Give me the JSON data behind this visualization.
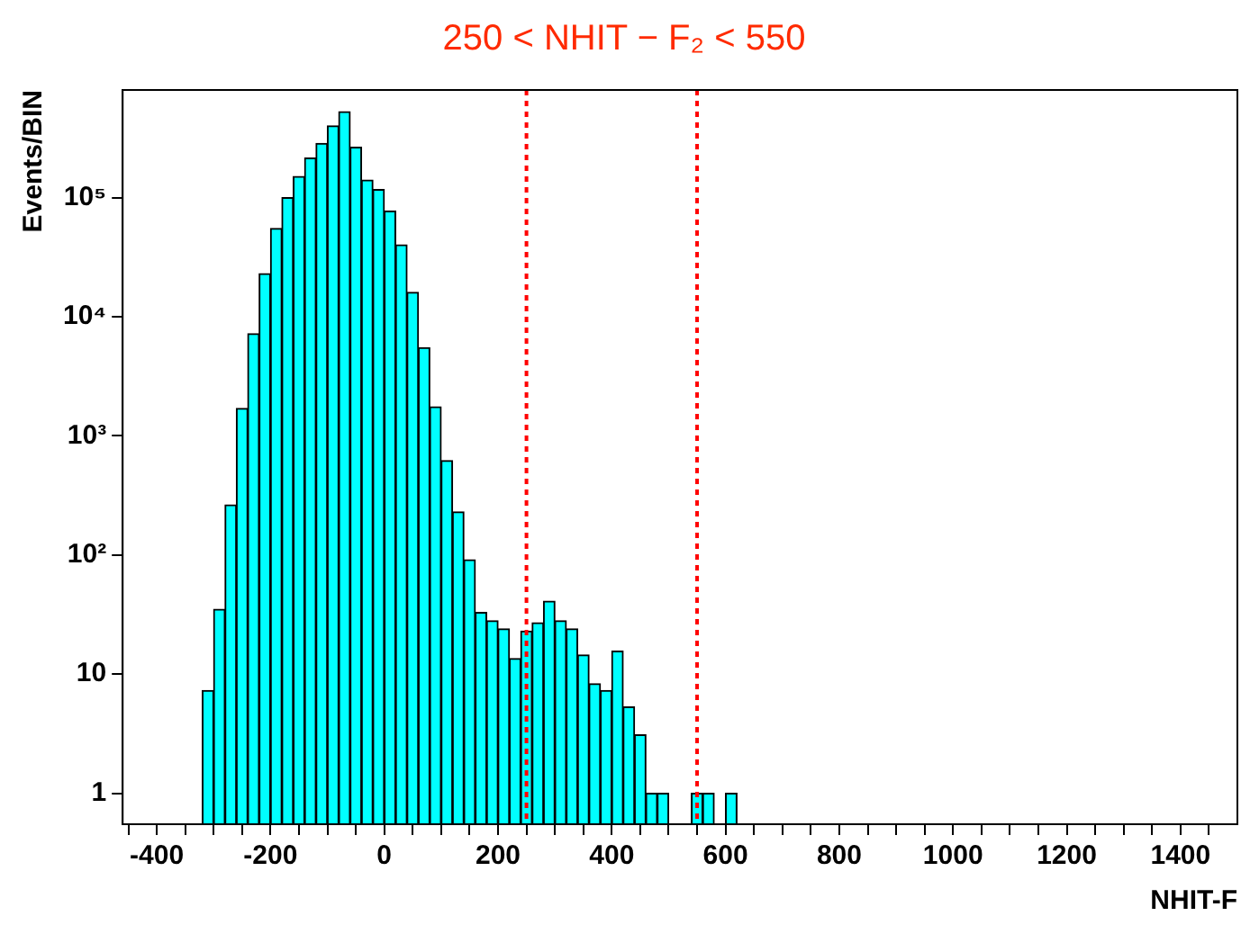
{
  "chart_data": {
    "type": "histogram",
    "title": "250 < NHIT − F₂ < 550",
    "xlabel": "NHIT-F",
    "ylabel": "Events/BIN",
    "color": "#00ffff",
    "log": "y",
    "bins": [
      -320,
      -300,
      -280,
      -260,
      -240,
      -220,
      -200,
      -180,
      -160,
      -140,
      -120,
      -100,
      -80,
      -60,
      -40,
      -20,
      0,
      20,
      40,
      60,
      80,
      100,
      120,
      140,
      160,
      180,
      200,
      220,
      240,
      260,
      280,
      300,
      320,
      340,
      360,
      380,
      400,
      420,
      440,
      460,
      480,
      500,
      520,
      540,
      560,
      580,
      600,
      620,
      640
    ],
    "values": [
      7.3,
      35,
      263,
      1700,
      7200,
      23000,
      55000,
      100000,
      150000,
      215000,
      285000,
      400000,
      525000,
      265000,
      140000,
      117000,
      77000,
      40000,
      16000,
      5500,
      1750,
      620,
      230,
      91,
      33,
      28,
      24,
      13.5,
      23,
      27,
      41,
      28,
      24,
      14.5,
      8.3,
      7.3,
      15.6,
      5.3,
      3.1,
      1,
      1,
      null,
      null,
      1,
      1,
      null,
      1,
      null
    ],
    "xlim": [
      -460,
      1500
    ],
    "ylim": [
      0.55,
      800000
    ],
    "xticks": [
      {
        "value": -450,
        "label": null
      },
      -400,
      {
        "value": -350,
        "label": null
      },
      {
        "value": -300,
        "label": null
      },
      {
        "value": -250,
        "label": null
      },
      -200,
      {
        "value": -150,
        "label": null
      },
      {
        "value": -100,
        "label": null
      },
      {
        "value": -50,
        "label": null
      },
      0,
      {
        "value": 50,
        "label": null
      },
      {
        "value": 100,
        "label": null
      },
      {
        "value": 150,
        "label": null
      },
      200,
      {
        "value": 250,
        "label": null
      },
      {
        "value": 300,
        "label": null
      },
      {
        "value": 350,
        "label": null
      },
      400,
      {
        "value": 450,
        "label": null
      },
      {
        "value": 500,
        "label": null
      },
      {
        "value": 550,
        "label": null
      },
      600,
      {
        "value": 650,
        "label": null
      },
      {
        "value": 700,
        "label": null
      },
      {
        "value": 750,
        "label": null
      },
      800,
      {
        "value": 850,
        "label": null
      },
      {
        "value": 900,
        "label": null
      },
      {
        "value": 950,
        "label": null
      },
      1000,
      {
        "value": 1050,
        "label": null
      },
      {
        "value": 1100,
        "label": null
      },
      {
        "value": 1150,
        "label": null
      },
      1200,
      {
        "value": 1250,
        "label": null
      },
      {
        "value": 1300,
        "label": null
      },
      {
        "value": 1350,
        "label": null
      },
      1400,
      {
        "value": 1450,
        "label": null
      }
    ],
    "yticks": [
      1,
      10,
      {
        "value": 100,
        "label": "10²"
      },
      {
        "value": 1000,
        "label": "10³"
      },
      {
        "value": 10000,
        "label": "10⁴"
      },
      {
        "value": 100000,
        "label": "10⁵"
      }
    ],
    "ref_lines": [
      {
        "axis": "x",
        "value": 250,
        "color": "#ff0000",
        "line_style": "dotted"
      },
      {
        "axis": "x",
        "value": 550,
        "color": "#ff0000",
        "line_style": "dotted"
      }
    ]
  }
}
